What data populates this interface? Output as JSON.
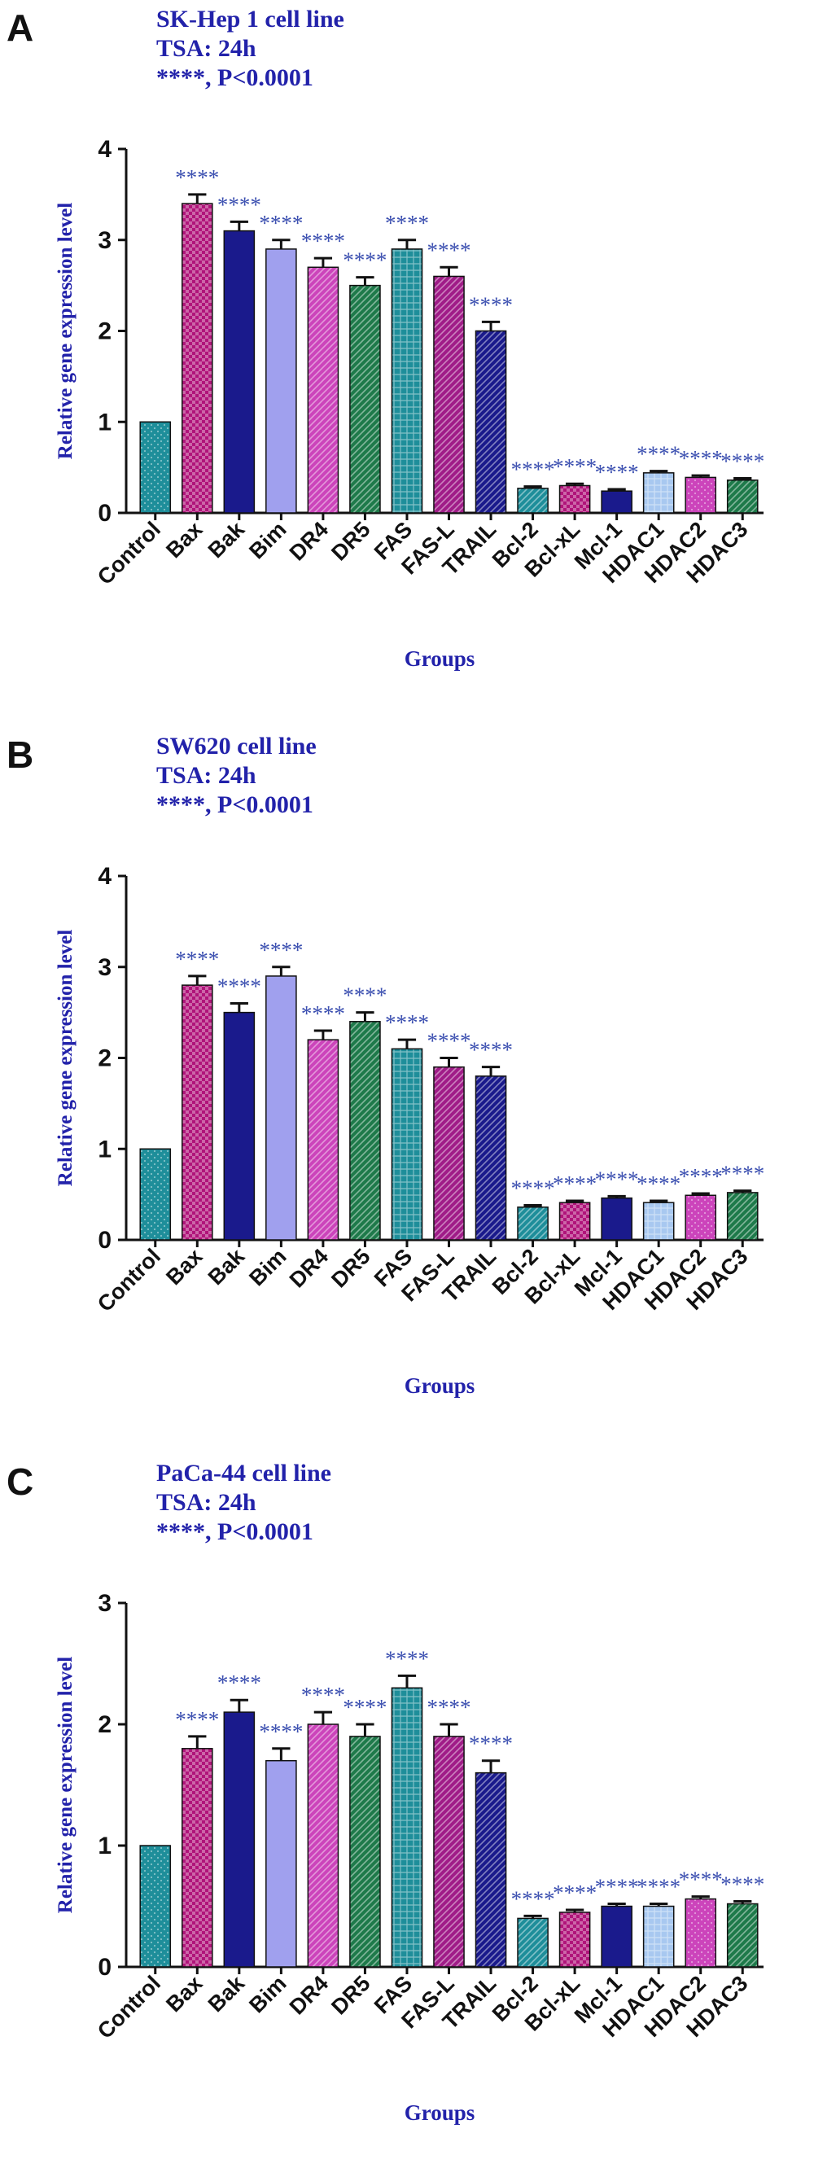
{
  "colors": {
    "title_text": "#2222aa",
    "axis_title": "#2222aa",
    "significance": "#3b4fb0",
    "axis": "#111111",
    "bar_fills": [
      "#1e8e9a",
      "#b0147a",
      "#1a1a8c",
      "#a0a0ee",
      "#cc44bb",
      "#1e7a4a",
      "#1e8e9a",
      "#a01c88",
      "#1a1a8c",
      "#1e8e9a",
      "#b0147a",
      "#1a1a8c",
      "#a8c8f0",
      "#cc44bb",
      "#1e7a4a"
    ],
    "bar_patterns": [
      "dots",
      "checker",
      "solid",
      "solid",
      "stripe",
      "stripe",
      "grid",
      "stripe",
      "stripe",
      "stripe",
      "checker",
      "solid",
      "grid",
      "dots",
      "stripe"
    ]
  },
  "chart_data": [
    {
      "type": "bar",
      "panel_label": "A",
      "title_lines": [
        "SK-Hep 1 cell line",
        "TSA: 24h",
        "****, P<0.0001"
      ],
      "xlabel": "Groups",
      "ylabel": "Relative gene expression level",
      "ylim": [
        0,
        4
      ],
      "yticks": [
        "0",
        "1",
        "2",
        "3",
        "4"
      ],
      "categories": [
        "Control",
        "Bax",
        "Bak",
        "Bim",
        "DR4",
        "DR5",
        "FAS",
        "FAS-L",
        "TRAIL",
        "Bcl-2",
        "Bcl-xL",
        "Mcl-1",
        "HDAC1",
        "HDAC2",
        "HDAC3"
      ],
      "values": [
        1.0,
        3.4,
        3.1,
        2.9,
        2.7,
        2.5,
        2.9,
        2.6,
        2.0,
        0.27,
        0.3,
        0.24,
        0.44,
        0.39,
        0.36
      ],
      "errors": [
        0,
        0.1,
        0.1,
        0.1,
        0.1,
        0.09,
        0.1,
        0.1,
        0.1,
        0.02,
        0.02,
        0.02,
        0.02,
        0.02,
        0.02
      ],
      "significance": [
        "",
        "****",
        "****",
        "****",
        "****",
        "****",
        "****",
        "****",
        "****",
        "****",
        "****",
        "****",
        "****",
        "****",
        "****"
      ]
    },
    {
      "type": "bar",
      "panel_label": "B",
      "title_lines": [
        "SW620 cell line",
        "TSA: 24h",
        "****, P<0.0001"
      ],
      "xlabel": "Groups",
      "ylabel": "Relative gene expression level",
      "ylim": [
        0,
        4
      ],
      "yticks": [
        "0",
        "1",
        "2",
        "3",
        "4"
      ],
      "categories": [
        "Control",
        "Bax",
        "Bak",
        "Bim",
        "DR4",
        "DR5",
        "FAS",
        "FAS-L",
        "TRAIL",
        "Bcl-2",
        "Bcl-xL",
        "Mcl-1",
        "HDAC1",
        "HDAC2",
        "HDAC3"
      ],
      "values": [
        1.0,
        2.8,
        2.5,
        2.9,
        2.2,
        2.4,
        2.1,
        1.9,
        1.8,
        0.36,
        0.41,
        0.46,
        0.41,
        0.49,
        0.52
      ],
      "errors": [
        0,
        0.1,
        0.1,
        0.1,
        0.1,
        0.1,
        0.1,
        0.1,
        0.1,
        0.02,
        0.02,
        0.02,
        0.02,
        0.02,
        0.02
      ],
      "significance": [
        "",
        "****",
        "****",
        "****",
        "****",
        "****",
        "****",
        "****",
        "****",
        "****",
        "****",
        "****",
        "****",
        "****",
        "****"
      ]
    },
    {
      "type": "bar",
      "panel_label": "C",
      "title_lines": [
        "PaCa-44 cell line",
        "TSA: 24h",
        "****, P<0.0001"
      ],
      "xlabel": "Groups",
      "ylabel": "Relative gene expression level",
      "ylim": [
        0,
        3
      ],
      "yticks": [
        "0",
        "1",
        "2",
        "3"
      ],
      "categories": [
        "Control",
        "Bax",
        "Bak",
        "Bim",
        "DR4",
        "DR5",
        "FAS",
        "FAS-L",
        "TRAIL",
        "Bcl-2",
        "Bcl-xL",
        "Mcl-1",
        "HDAC1",
        "HDAC2",
        "HDAC3"
      ],
      "values": [
        1.0,
        1.8,
        2.1,
        1.7,
        2.0,
        1.9,
        2.3,
        1.9,
        1.6,
        0.4,
        0.45,
        0.5,
        0.5,
        0.56,
        0.52
      ],
      "errors": [
        0,
        0.1,
        0.1,
        0.1,
        0.1,
        0.1,
        0.1,
        0.1,
        0.1,
        0.02,
        0.02,
        0.02,
        0.02,
        0.02,
        0.02
      ],
      "significance": [
        "",
        "****",
        "****",
        "****",
        "****",
        "****",
        "****",
        "****",
        "****",
        "****",
        "****",
        "****",
        "****",
        "****",
        "****"
      ]
    }
  ]
}
